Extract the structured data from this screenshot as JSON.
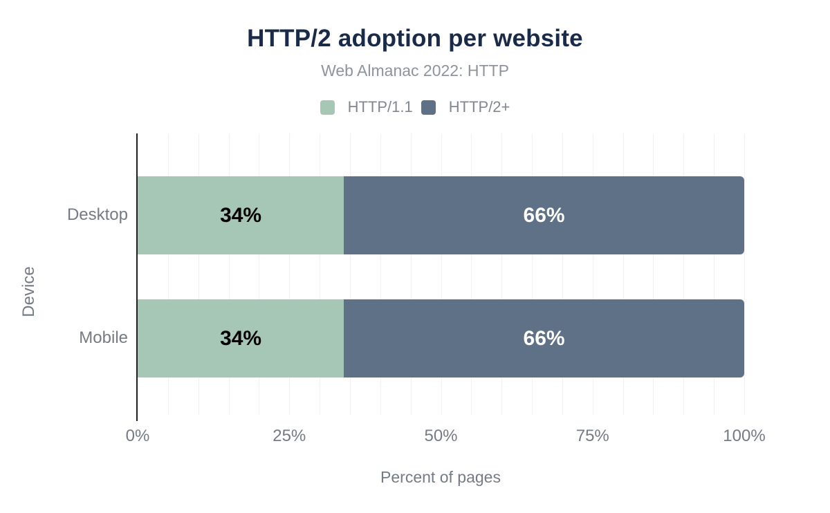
{
  "figure": {
    "title": "HTTP/2 adoption per website",
    "subtitle": "Web Almanac 2022: HTTP"
  },
  "chart_data": {
    "type": "bar",
    "orientation": "horizontal",
    "stacked": true,
    "title": "HTTP/2 adoption per website",
    "subtitle": "Web Almanac 2022: HTTP",
    "categories": [
      "Desktop",
      "Mobile"
    ],
    "series": [
      {
        "name": "HTTP/1.1",
        "color": "#a6c7b5",
        "label_color": "#000000",
        "values": [
          34,
          34
        ],
        "labels": [
          "34%",
          "34%"
        ]
      },
      {
        "name": "HTTP/2+",
        "color": "#5e7186",
        "label_color": "#ffffff",
        "values": [
          66,
          66
        ],
        "labels": [
          "66%",
          "66%"
        ]
      }
    ],
    "xlabel": "Percent of pages",
    "ylabel": "Device",
    "xlim": [
      0,
      100
    ],
    "x_ticks": [
      {
        "value": 0,
        "label": "0%"
      },
      {
        "value": 25,
        "label": "25%"
      },
      {
        "value": 50,
        "label": "50%"
      },
      {
        "value": 75,
        "label": "75%"
      },
      {
        "value": 100,
        "label": "100%"
      }
    ],
    "grid": {
      "show": true,
      "interval": 5
    },
    "legend_position": "top"
  },
  "style": {
    "title_color": "#1a2b49",
    "subtitle_color": "#8f949c",
    "legend_text_color": "#82878f",
    "axis_text_color": "#757b84",
    "grid_color": "#f1f1f4",
    "axis_line_color": "#1f1f1f",
    "background": "#ffffff"
  }
}
